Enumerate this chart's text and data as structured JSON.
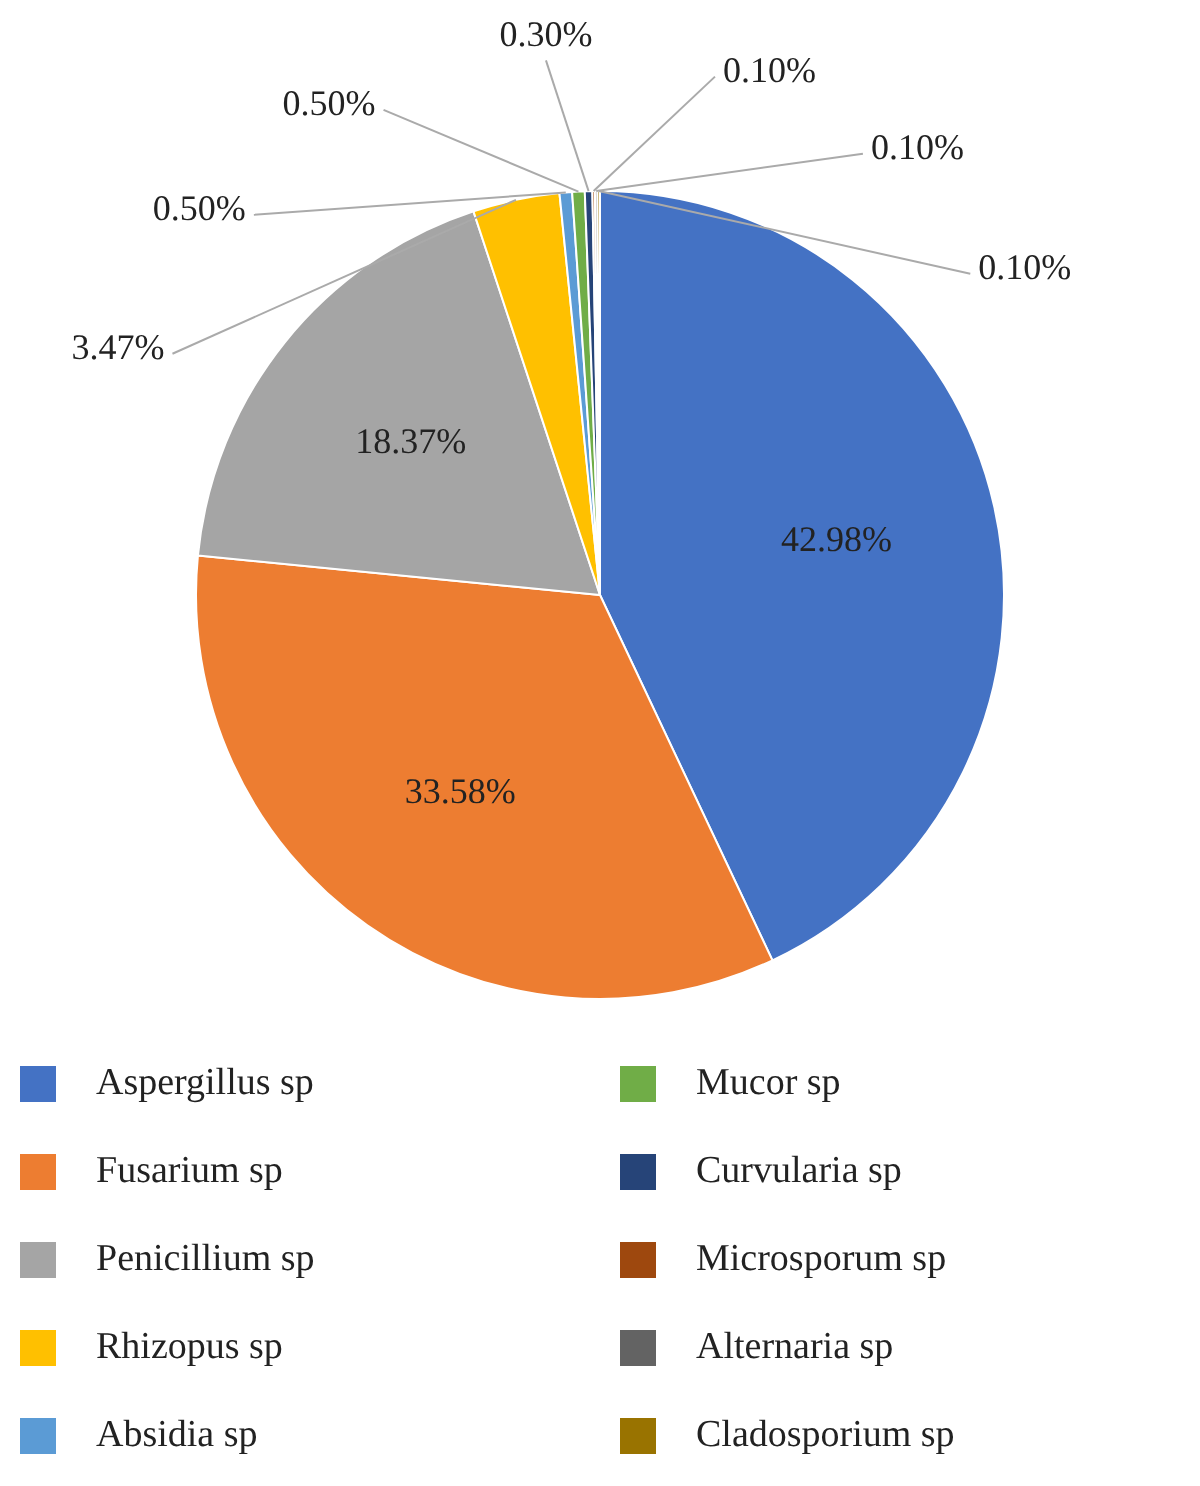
{
  "chart_data": {
    "type": "pie",
    "categories": [
      "Aspergillus sp",
      "Fusarium sp",
      "Penicillium sp",
      "Rhizopus sp",
      "Absidia sp",
      "Mucor sp",
      "Curvularia sp",
      "Microsporum sp",
      "Alternaria sp",
      "Cladosporium sp"
    ],
    "values": [
      42.98,
      33.58,
      18.37,
      3.47,
      0.5,
      0.5,
      0.3,
      0.1,
      0.1,
      0.1
    ],
    "value_labels": [
      "42.98%",
      "33.58%",
      "18.37%",
      "3.47%",
      "0.50%",
      "0.50%",
      "0.30%",
      "0.10%",
      "0.10%",
      "0.10%"
    ],
    "colors": [
      "#4472c4",
      "#ed7d31",
      "#a5a5a5",
      "#ffc000",
      "#5b9bd5",
      "#70ad47",
      "#264478",
      "#9e480e",
      "#636363",
      "#997300"
    ],
    "legend": "bottom"
  }
}
